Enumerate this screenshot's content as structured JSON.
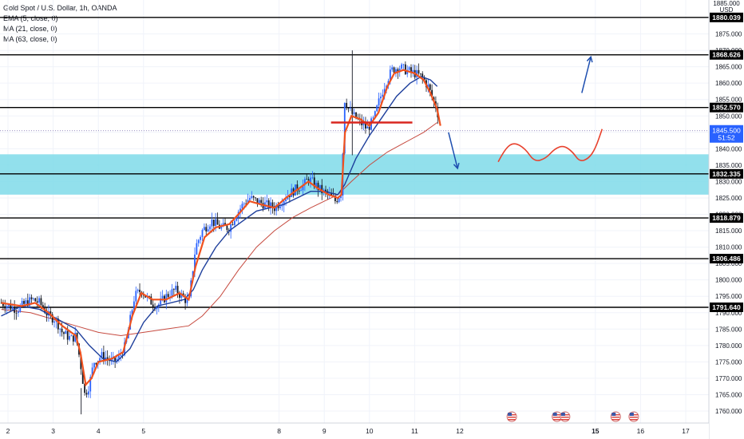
{
  "header": {
    "symbol_line": "Gold Spot / U.S. Dollar, 1h, OANDA",
    "indicators": [
      "EMA (5, close, 0)",
      "MA (21, close, 0)",
      "MA (63, close, 0)"
    ]
  },
  "chart_data": {
    "type": "candlestick",
    "currency_label": "USD",
    "top_tick_label": "1885.000",
    "y_range": [
      1758,
      1885
    ],
    "x_range_days": [
      1.8,
      17.6
    ],
    "y_tick_labels": [
      1760,
      1765,
      1770,
      1775,
      1780,
      1785,
      1790,
      1795,
      1800,
      1805,
      1810,
      1815,
      1820,
      1825,
      1830,
      1835,
      1840,
      1845,
      1850,
      1855,
      1860,
      1865,
      1870,
      1875,
      1880
    ],
    "x_ticks": [
      {
        "day": 2,
        "label": "2"
      },
      {
        "day": 3,
        "label": "3"
      },
      {
        "day": 4,
        "label": "4"
      },
      {
        "day": 5,
        "label": "5"
      },
      {
        "day": 8,
        "label": "8"
      },
      {
        "day": 9,
        "label": "9"
      },
      {
        "day": 10,
        "label": "10"
      },
      {
        "day": 11,
        "label": "11"
      },
      {
        "day": 12,
        "label": "12"
      },
      {
        "day": 15,
        "label": "15"
      },
      {
        "day": 16,
        "label": "16"
      },
      {
        "day": 17,
        "label": "17"
      }
    ],
    "bold_x_ticks": [
      "15"
    ],
    "horizontal_levels": [
      {
        "value": 1880.039,
        "label": "1880.039"
      },
      {
        "value": 1868.626,
        "label": "1868.626"
      },
      {
        "value": 1852.57,
        "label": "1852.570"
      },
      {
        "value": 1832.335,
        "label": "1832.335"
      },
      {
        "value": 1818.879,
        "label": "1818.879"
      },
      {
        "value": 1806.486,
        "label": "1806.486"
      },
      {
        "value": 1791.64,
        "label": "1791.640"
      }
    ],
    "current_price": {
      "value": 1845.5,
      "label": "1845.500",
      "countdown": "51:52"
    },
    "zone": {
      "from": 1826,
      "to": 1838.3,
      "color": "#7fdbe9"
    },
    "series": [
      {
        "name": "EMA (5, close, 0)",
        "color": "#f0511e"
      },
      {
        "name": "MA (21, close, 0)",
        "color": "#1e3f9c"
      },
      {
        "name": "MA (63, close, 0)",
        "color": "#c64a3f"
      }
    ],
    "price_path": [
      [
        1.85,
        1793
      ],
      [
        2.2,
        1791
      ],
      [
        2.4,
        1793
      ],
      [
        2.55,
        1794
      ],
      [
        2.7,
        1793
      ],
      [
        2.9,
        1789
      ],
      [
        3.05,
        1788
      ],
      [
        3.2,
        1784
      ],
      [
        3.4,
        1782
      ],
      [
        3.5,
        1783
      ],
      [
        3.6,
        1775
      ],
      [
        3.7,
        1765
      ],
      [
        3.8,
        1768
      ],
      [
        3.9,
        1775
      ],
      [
        4.1,
        1777
      ],
      [
        4.3,
        1775
      ],
      [
        4.45,
        1776
      ],
      [
        4.6,
        1780
      ],
      [
        4.8,
        1795
      ],
      [
        4.95,
        1797
      ],
      [
        5.1,
        1794
      ],
      [
        5.3,
        1792
      ],
      [
        5.5,
        1795
      ],
      [
        5.7,
        1797
      ],
      [
        5.85,
        1795
      ],
      [
        6.0,
        1793
      ],
      [
        6.15,
        1810
      ],
      [
        6.3,
        1815
      ],
      [
        6.5,
        1818
      ],
      [
        6.7,
        1816
      ],
      [
        6.9,
        1816
      ],
      [
        7.05,
        1820
      ],
      [
        7.2,
        1823
      ],
      [
        7.35,
        1825
      ],
      [
        7.5,
        1824
      ],
      [
        7.7,
        1823
      ],
      [
        7.9,
        1822
      ],
      [
        8.05,
        1824
      ],
      [
        8.2,
        1826
      ],
      [
        8.4,
        1828
      ],
      [
        8.55,
        1829
      ],
      [
        8.65,
        1831
      ],
      [
        8.8,
        1829
      ],
      [
        8.95,
        1827
      ],
      [
        9.1,
        1826
      ],
      [
        9.25,
        1824
      ],
      [
        9.38,
        1827
      ],
      [
        9.45,
        1855
      ],
      [
        9.55,
        1852
      ],
      [
        9.65,
        1850
      ],
      [
        9.8,
        1848
      ],
      [
        9.95,
        1846
      ],
      [
        10.1,
        1849
      ],
      [
        10.2,
        1854
      ],
      [
        10.35,
        1860
      ],
      [
        10.5,
        1864
      ],
      [
        10.65,
        1865
      ],
      [
        10.8,
        1864
      ],
      [
        11.0,
        1863
      ],
      [
        11.15,
        1862
      ],
      [
        11.3,
        1859
      ],
      [
        11.4,
        1855
      ],
      [
        11.5,
        1852
      ],
      [
        11.55,
        1846
      ]
    ],
    "ema5": [
      [
        1.85,
        1793
      ],
      [
        2.3,
        1792
      ],
      [
        2.6,
        1793
      ],
      [
        2.9,
        1790
      ],
      [
        3.2,
        1786
      ],
      [
        3.5,
        1783
      ],
      [
        3.6,
        1778
      ],
      [
        3.72,
        1768
      ],
      [
        3.85,
        1770
      ],
      [
        4.0,
        1775
      ],
      [
        4.3,
        1776
      ],
      [
        4.55,
        1778
      ],
      [
        4.75,
        1789
      ],
      [
        4.95,
        1796
      ],
      [
        5.2,
        1794
      ],
      [
        5.5,
        1794
      ],
      [
        5.8,
        1796
      ],
      [
        6.0,
        1794
      ],
      [
        6.15,
        1804
      ],
      [
        6.35,
        1813
      ],
      [
        6.6,
        1816
      ],
      [
        6.9,
        1817
      ],
      [
        7.1,
        1820
      ],
      [
        7.35,
        1824
      ],
      [
        7.6,
        1823
      ],
      [
        7.9,
        1822
      ],
      [
        8.15,
        1825
      ],
      [
        8.45,
        1828
      ],
      [
        8.65,
        1830
      ],
      [
        8.85,
        1828
      ],
      [
        9.1,
        1826
      ],
      [
        9.3,
        1825
      ],
      [
        9.38,
        1826
      ],
      [
        9.46,
        1845
      ],
      [
        9.6,
        1850
      ],
      [
        9.8,
        1849
      ],
      [
        10.0,
        1847
      ],
      [
        10.2,
        1851
      ],
      [
        10.4,
        1859
      ],
      [
        10.55,
        1863
      ],
      [
        10.75,
        1864
      ],
      [
        11.0,
        1863
      ],
      [
        11.2,
        1861
      ],
      [
        11.35,
        1857
      ],
      [
        11.5,
        1852
      ],
      [
        11.57,
        1847
      ]
    ],
    "ma21": [
      [
        1.85,
        1789
      ],
      [
        2.3,
        1792
      ],
      [
        2.7,
        1791
      ],
      [
        3.1,
        1788
      ],
      [
        3.5,
        1785
      ],
      [
        3.8,
        1780
      ],
      [
        4.1,
        1776
      ],
      [
        4.4,
        1775
      ],
      [
        4.7,
        1779
      ],
      [
        5.0,
        1787
      ],
      [
        5.3,
        1792
      ],
      [
        5.6,
        1793
      ],
      [
        5.9,
        1794
      ],
      [
        6.1,
        1797
      ],
      [
        6.3,
        1803
      ],
      [
        6.6,
        1810
      ],
      [
        6.9,
        1815
      ],
      [
        7.2,
        1818
      ],
      [
        7.5,
        1821
      ],
      [
        7.8,
        1822
      ],
      [
        8.1,
        1823
      ],
      [
        8.4,
        1825
      ],
      [
        8.7,
        1827
      ],
      [
        9.0,
        1827
      ],
      [
        9.3,
        1826
      ],
      [
        9.45,
        1829
      ],
      [
        9.7,
        1837
      ],
      [
        10.0,
        1844
      ],
      [
        10.3,
        1850
      ],
      [
        10.6,
        1856
      ],
      [
        10.9,
        1860
      ],
      [
        11.15,
        1862
      ],
      [
        11.35,
        1861
      ],
      [
        11.5,
        1859
      ]
    ],
    "ma63": [
      [
        1.85,
        1791
      ],
      [
        2.5,
        1790
      ],
      [
        3.0,
        1788
      ],
      [
        3.5,
        1786
      ],
      [
        4.0,
        1784
      ],
      [
        4.5,
        1783
      ],
      [
        5.0,
        1784
      ],
      [
        5.5,
        1785
      ],
      [
        6.0,
        1786
      ],
      [
        6.3,
        1789
      ],
      [
        6.7,
        1795
      ],
      [
        7.1,
        1803
      ],
      [
        7.5,
        1810
      ],
      [
        7.9,
        1815
      ],
      [
        8.3,
        1819
      ],
      [
        8.7,
        1822
      ],
      [
        9.0,
        1824
      ],
      [
        9.3,
        1826
      ],
      [
        9.6,
        1830
      ],
      [
        10.0,
        1835
      ],
      [
        10.4,
        1839
      ],
      [
        10.8,
        1842
      ],
      [
        11.2,
        1845
      ],
      [
        11.5,
        1848
      ]
    ],
    "annotations": {
      "red_level": {
        "from_day": 9.15,
        "to_day": 10.95,
        "value": 1848
      },
      "arrow_up": {
        "from": [
          14.7,
          1857
        ],
        "to": [
          14.9,
          1868
        ]
      },
      "arrow_down": {
        "from": [
          11.75,
          1845
        ],
        "to": [
          11.95,
          1834
        ]
      },
      "wave": [
        [
          12.85,
          1836
        ],
        [
          13.0,
          1840
        ],
        [
          13.2,
          1842
        ],
        [
          13.45,
          1840
        ],
        [
          13.65,
          1836
        ],
        [
          13.9,
          1837
        ],
        [
          14.1,
          1840
        ],
        [
          14.3,
          1841
        ],
        [
          14.5,
          1839
        ],
        [
          14.65,
          1836
        ],
        [
          14.85,
          1837
        ],
        [
          15.0,
          1840
        ],
        [
          15.15,
          1846
        ]
      ]
    },
    "event_flag_days": [
      13.15,
      14.15,
      14.33,
      15.45,
      15.85
    ]
  }
}
